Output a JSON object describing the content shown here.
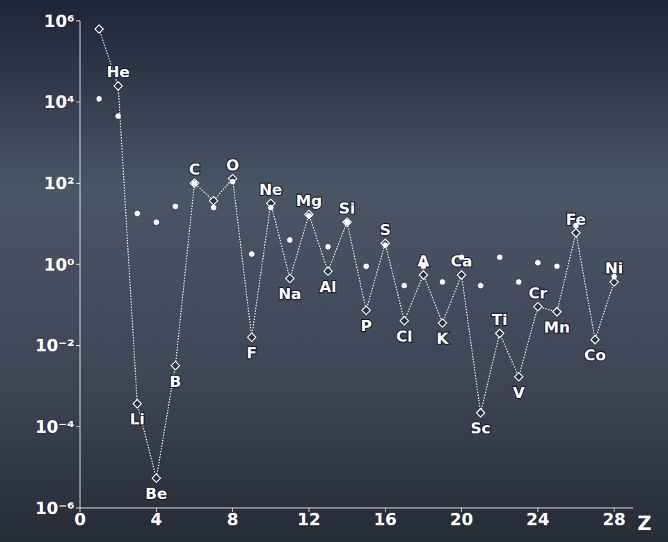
{
  "chart_data": {
    "type": "line",
    "x_label": "Z",
    "x": [
      1,
      2,
      3,
      4,
      5,
      6,
      7,
      8,
      9,
      10,
      11,
      12,
      13,
      14,
      15,
      16,
      17,
      18,
      19,
      20,
      21,
      22,
      23,
      24,
      25,
      26,
      27,
      28
    ],
    "series": [
      {
        "type": "line",
        "color": "#ffffff",
        "marker": "diamond",
        "line_style": "dotted",
        "values": [
          630000,
          25000,
          0.00037,
          5.4e-06,
          0.0032,
          100,
          37,
          130,
          0.016,
          32,
          0.45,
          17,
          0.68,
          11,
          0.074,
          3.3,
          0.041,
          0.55,
          0.036,
          0.55,
          0.00022,
          0.02,
          0.0017,
          0.091,
          0.068,
          6,
          0.014,
          0.37
        ],
        "point_labels": [
          null,
          "He",
          "Li",
          "Be",
          "B",
          "C",
          null,
          "O",
          "F",
          "Ne",
          "Na",
          "Mg",
          "Al",
          "Si",
          "P",
          "S",
          "Cl",
          "A",
          "K",
          "Ca",
          "Sc",
          "Ti",
          "V",
          "Cr",
          "Mn",
          "Fe",
          "Co",
          "Ni"
        ]
      },
      {
        "type": "scatter",
        "color": "#ffffff",
        "marker": "circle",
        "values": [
          12000,
          4500,
          18,
          11,
          27,
          100,
          25,
          110,
          1.8,
          25,
          4,
          16,
          2.7,
          11,
          0.9,
          3,
          0.3,
          0.9,
          0.37,
          1.5,
          0.3,
          1.5,
          0.37,
          1.1,
          0.9,
          9,
          null,
          0.5
        ]
      }
    ],
    "xlim": [
      0,
      29
    ],
    "xticks": [
      0,
      4,
      8,
      12,
      16,
      20,
      24,
      28
    ],
    "ylim": [
      1e-06,
      1000000.0
    ],
    "yticks": [
      {
        "value": 1e-06,
        "label": "10⁻⁶"
      },
      {
        "value": 0.0001,
        "label": "10⁻⁴"
      },
      {
        "value": 0.01,
        "label": "10⁻²"
      },
      {
        "value": 1,
        "label": "10⁰"
      },
      {
        "value": 100,
        "label": "10²"
      },
      {
        "value": 10000,
        "label": "10⁴"
      },
      {
        "value": 1000000,
        "label": "10⁶"
      }
    ],
    "log": "y",
    "grid": false
  }
}
